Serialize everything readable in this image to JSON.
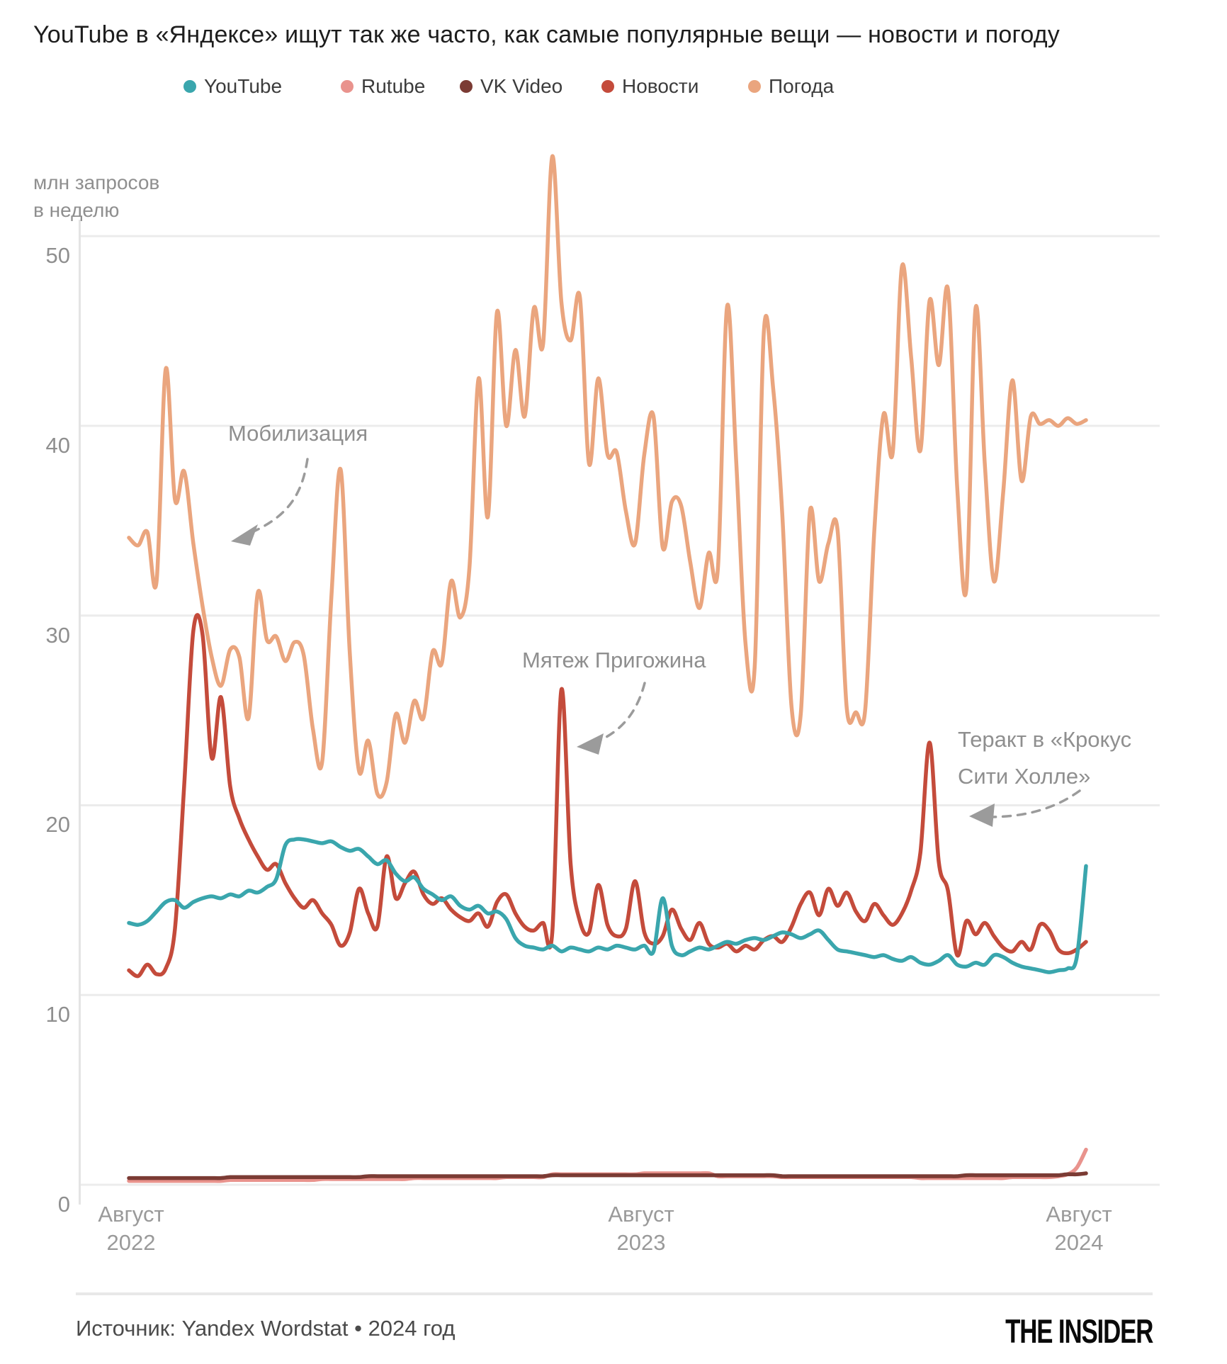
{
  "title": "YouTube в «Яндексе» ищут так же часто, как самые популярные вещи — новости и погоду",
  "legend": {
    "items": [
      {
        "label": "YouTube",
        "color": "#3AA6AD"
      },
      {
        "label": "Rutube",
        "color": "#E9938D"
      },
      {
        "label": "VK Video",
        "color": "#7B3B34"
      },
      {
        "label": "Новости",
        "color": "#C44B3B"
      },
      {
        "label": "Погода",
        "color": "#EAA57E"
      }
    ]
  },
  "y_axis": {
    "unit_label_line1": "млн запросов",
    "unit_label_line2": "в неделю",
    "ticks": [
      0,
      10,
      20,
      30,
      40,
      50
    ]
  },
  "x_axis": {
    "ticks": [
      {
        "month": "Август",
        "year": "2022"
      },
      {
        "month": "Август",
        "year": "2023"
      },
      {
        "month": "Август",
        "year": "2024"
      }
    ]
  },
  "annotations": {
    "mobilization": {
      "text": "Мобилизация"
    },
    "prigozhin": {
      "text": "Мятеж Пригожина"
    },
    "crocus": {
      "line1": "Теракт в «Крокус",
      "line2": "Сити Холле»"
    }
  },
  "footer": {
    "source": "Источник: Yandex Wordstat • 2024 год",
    "logo": "THE INSIDER"
  },
  "chart_data": {
    "type": "line",
    "x_unit": "week",
    "x_range": [
      "Август 2022",
      "Август 2024"
    ],
    "ylabel": "млн запросов в неделю",
    "ylim": [
      0,
      55
    ],
    "grid": true,
    "legend_position": "top",
    "series": [
      {
        "name": "Rutube",
        "color": "#E9938D",
        "values": [
          0.2,
          0.2,
          0.2,
          0.2,
          0.2,
          0.2,
          0.2,
          0.2,
          0.2,
          0.2,
          0.2,
          0.25,
          0.25,
          0.25,
          0.25,
          0.25,
          0.25,
          0.25,
          0.25,
          0.25,
          0.25,
          0.3,
          0.3,
          0.3,
          0.3,
          0.3,
          0.3,
          0.3,
          0.3,
          0.3,
          0.3,
          0.35,
          0.35,
          0.35,
          0.35,
          0.35,
          0.35,
          0.35,
          0.35,
          0.35,
          0.35,
          0.4,
          0.4,
          0.4,
          0.4,
          0.4,
          0.55,
          0.55,
          0.55,
          0.55,
          0.55,
          0.55,
          0.55,
          0.55,
          0.55,
          0.55,
          0.6,
          0.6,
          0.6,
          0.6,
          0.6,
          0.6,
          0.6,
          0.6,
          0.45,
          0.45,
          0.45,
          0.45,
          0.45,
          0.45,
          0.45,
          0.4,
          0.4,
          0.4,
          0.4,
          0.4,
          0.4,
          0.4,
          0.4,
          0.4,
          0.4,
          0.4,
          0.4,
          0.4,
          0.4,
          0.4,
          0.35,
          0.35,
          0.35,
          0.35,
          0.35,
          0.35,
          0.35,
          0.35,
          0.35,
          0.35,
          0.4,
          0.4,
          0.4,
          0.4,
          0.4,
          0.45,
          0.55,
          0.9,
          1.85
        ]
      },
      {
        "name": "VK Video",
        "color": "#7B3B34",
        "values": [
          0.35,
          0.35,
          0.35,
          0.35,
          0.35,
          0.35,
          0.35,
          0.35,
          0.35,
          0.35,
          0.35,
          0.4,
          0.4,
          0.4,
          0.4,
          0.4,
          0.4,
          0.4,
          0.4,
          0.4,
          0.4,
          0.4,
          0.4,
          0.4,
          0.4,
          0.4,
          0.45,
          0.45,
          0.45,
          0.45,
          0.45,
          0.45,
          0.45,
          0.45,
          0.45,
          0.45,
          0.45,
          0.45,
          0.45,
          0.45,
          0.45,
          0.45,
          0.45,
          0.45,
          0.45,
          0.45,
          0.5,
          0.5,
          0.5,
          0.5,
          0.5,
          0.5,
          0.5,
          0.5,
          0.5,
          0.5,
          0.5,
          0.5,
          0.5,
          0.5,
          0.5,
          0.5,
          0.5,
          0.5,
          0.5,
          0.5,
          0.5,
          0.5,
          0.5,
          0.5,
          0.5,
          0.45,
          0.45,
          0.45,
          0.45,
          0.45,
          0.45,
          0.45,
          0.45,
          0.45,
          0.45,
          0.45,
          0.45,
          0.45,
          0.45,
          0.45,
          0.45,
          0.45,
          0.45,
          0.45,
          0.45,
          0.5,
          0.5,
          0.5,
          0.5,
          0.5,
          0.5,
          0.5,
          0.5,
          0.5,
          0.5,
          0.5,
          0.55,
          0.55,
          0.6
        ]
      },
      {
        "name": "Погода",
        "color": "#EAA57E",
        "values": [
          34.1,
          33.7,
          34.4,
          31.8,
          43.0,
          36.1,
          37.6,
          33.8,
          30.5,
          27.8,
          26.3,
          28.2,
          27.8,
          24.6,
          31.2,
          28.7,
          28.9,
          27.6,
          28.6,
          27.9,
          24.0,
          22.3,
          31.0,
          37.7,
          28.0,
          21.8,
          23.4,
          20.6,
          21.2,
          24.8,
          23.3,
          25.5,
          24.6,
          28.1,
          27.5,
          31.8,
          29.9,
          32.5,
          42.5,
          35.2,
          46.0,
          40.0,
          44.0,
          40.5,
          46.2,
          44.3,
          54.2,
          46.5,
          44.5,
          46.8,
          38.0,
          42.5,
          38.5,
          38.6,
          35.5,
          33.8,
          38.5,
          40.5,
          33.6,
          36.0,
          35.8,
          32.8,
          30.4,
          33.3,
          32.5,
          46.3,
          38.0,
          28.5,
          27.3,
          45.0,
          42.0,
          35.3,
          25.2,
          24.8,
          35.5,
          31.8,
          33.8,
          34.5,
          25.1,
          24.9,
          25.0,
          34.5,
          40.6,
          38.6,
          48.4,
          43.6,
          38.7,
          46.6,
          43.2,
          47.2,
          36.8,
          31.4,
          46.2,
          38.0,
          31.8,
          36.5,
          42.4,
          37.1,
          40.5,
          40.1,
          40.3,
          40.0,
          40.4,
          40.1,
          40.3
        ]
      },
      {
        "name": "Новости",
        "color": "#C44B3B",
        "values": [
          11.3,
          11.0,
          11.6,
          11.1,
          11.4,
          13.5,
          21.0,
          29.2,
          29.0,
          22.5,
          25.7,
          21.0,
          19.3,
          18.2,
          17.3,
          16.6,
          16.9,
          15.9,
          15.1,
          14.6,
          15.0,
          14.3,
          13.7,
          12.6,
          13.3,
          15.6,
          14.3,
          13.6,
          17.3,
          15.1,
          15.9,
          16.5,
          15.3,
          14.8,
          15.1,
          14.5,
          14.1,
          13.9,
          14.3,
          13.6,
          14.9,
          15.3,
          14.3,
          13.6,
          13.4,
          13.8,
          13.3,
          26.1,
          16.9,
          13.9,
          13.3,
          15.8,
          13.7,
          13.1,
          13.5,
          16.0,
          13.3,
          12.7,
          13.1,
          14.5,
          13.5,
          12.9,
          13.8,
          12.7,
          12.5,
          12.7,
          12.3,
          12.6,
          12.4,
          12.9,
          13.1,
          12.8,
          13.6,
          14.8,
          15.4,
          14.2,
          15.6,
          14.7,
          15.4,
          14.4,
          13.9,
          14.8,
          14.2,
          13.7,
          14.3,
          15.5,
          17.5,
          23.3,
          17.0,
          15.5,
          12.1,
          13.9,
          13.2,
          13.8,
          13.1,
          12.5,
          12.3,
          12.8,
          12.4,
          13.7,
          13.4,
          12.4,
          12.2,
          12.4,
          12.8
        ]
      },
      {
        "name": "YouTube",
        "color": "#3AA6AD",
        "values": [
          13.8,
          13.7,
          13.9,
          14.4,
          14.9,
          15.0,
          14.6,
          14.9,
          15.1,
          15.2,
          15.1,
          15.3,
          15.2,
          15.5,
          15.4,
          15.7,
          16.1,
          17.9,
          18.2,
          18.2,
          18.1,
          18.0,
          18.1,
          17.8,
          17.6,
          17.7,
          17.3,
          16.9,
          17.1,
          16.4,
          16.0,
          16.2,
          15.6,
          15.3,
          15.0,
          15.2,
          14.7,
          14.5,
          14.7,
          14.3,
          14.4,
          14.0,
          13.0,
          12.6,
          12.5,
          12.4,
          12.6,
          12.3,
          12.5,
          12.4,
          12.3,
          12.5,
          12.4,
          12.6,
          12.5,
          12.4,
          12.6,
          12.3,
          15.1,
          12.6,
          12.1,
          12.3,
          12.5,
          12.4,
          12.6,
          12.8,
          12.7,
          12.9,
          13.0,
          12.9,
          13.1,
          13.3,
          13.2,
          13.0,
          13.2,
          13.4,
          12.9,
          12.4,
          12.3,
          12.2,
          12.1,
          12.0,
          12.1,
          11.9,
          11.8,
          12.0,
          11.7,
          11.6,
          11.8,
          12.1,
          11.6,
          11.5,
          11.7,
          11.6,
          12.1,
          12.0,
          11.7,
          11.5,
          11.4,
          11.3,
          11.2,
          11.3,
          11.4,
          12.0,
          16.8
        ]
      }
    ]
  }
}
